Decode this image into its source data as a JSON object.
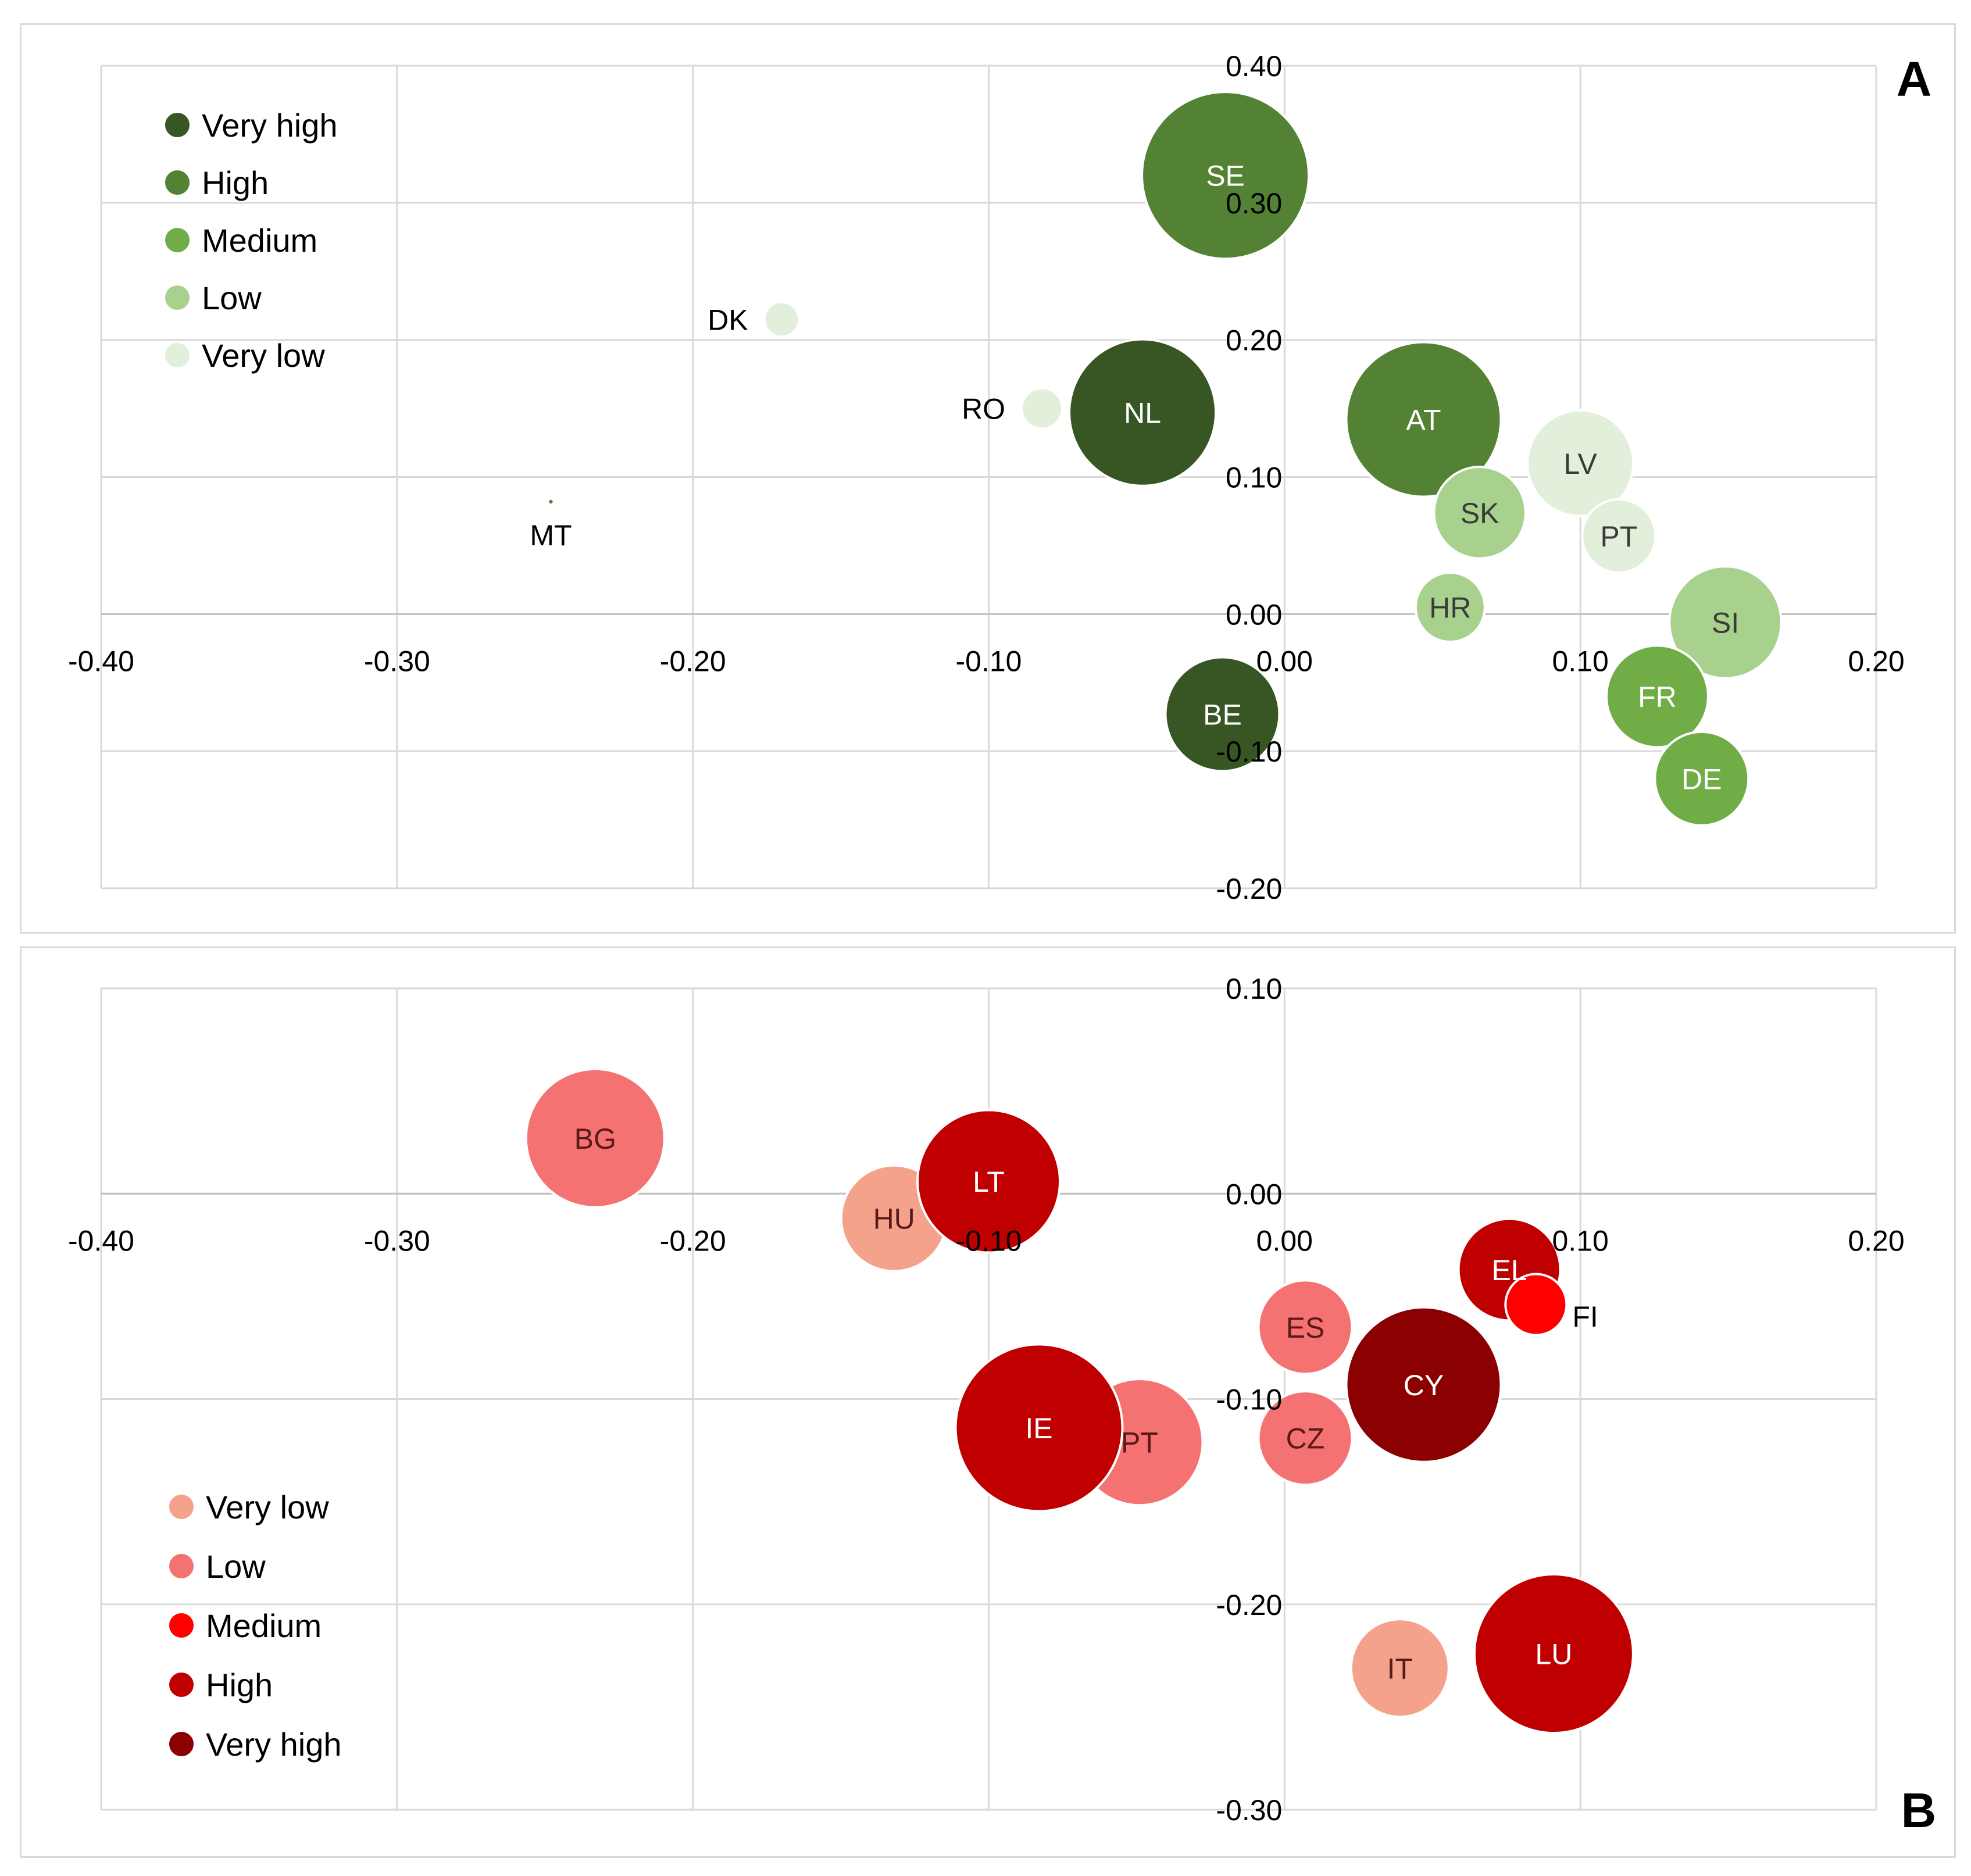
{
  "chart_data": [
    {
      "type": "bubble",
      "panel_label": "A",
      "xlim": [
        -0.4,
        0.2
      ],
      "ylim": [
        -0.2,
        0.4
      ],
      "x_ticks": [
        "-0.40",
        "-0.30",
        "-0.20",
        "-0.10",
        "0.00",
        "0.10",
        "0.20"
      ],
      "y_ticks": [
        "-0.20",
        "-0.10",
        "0.00",
        "0.10",
        "0.20",
        "0.30",
        "0.40"
      ],
      "legend_position": "top-left",
      "legend": [
        {
          "label": "Very high",
          "color": "#375623"
        },
        {
          "label": "High",
          "color": "#548235"
        },
        {
          "label": "Medium",
          "color": "#70ad47"
        },
        {
          "label": "Low",
          "color": "#a9d18e"
        },
        {
          "label": "Very low",
          "color": "#e2efda"
        }
      ],
      "points": [
        {
          "label": "SE",
          "x": -0.02,
          "y": 0.32,
          "size": 0.82,
          "category": "High",
          "color": "#548235",
          "text_color": "#ffffff",
          "label_pos": "inside"
        },
        {
          "label": "DK",
          "x": -0.17,
          "y": 0.215,
          "size": 0.17,
          "category": "Very low",
          "color": "#e2efda",
          "text_color": "#000000",
          "label_pos": "left"
        },
        {
          "label": "RO",
          "x": -0.082,
          "y": 0.15,
          "size": 0.2,
          "category": "Very low",
          "color": "#e2efda",
          "text_color": "#000000",
          "label_pos": "left"
        },
        {
          "label": "NL",
          "x": -0.048,
          "y": 0.147,
          "size": 0.72,
          "category": "Very high",
          "color": "#375623",
          "text_color": "#ffffff",
          "label_pos": "inside"
        },
        {
          "label": "AT",
          "x": 0.047,
          "y": 0.142,
          "size": 0.76,
          "category": "High",
          "color": "#548235",
          "text_color": "#ffffff",
          "label_pos": "inside"
        },
        {
          "label": "LV",
          "x": 0.1,
          "y": 0.11,
          "size": 0.52,
          "category": "Very low",
          "color": "#e2efda",
          "text_color": "#3a3a3a",
          "label_pos": "inside"
        },
        {
          "label": "SK",
          "x": 0.066,
          "y": 0.074,
          "size": 0.45,
          "category": "Low",
          "color": "#a9d18e",
          "text_color": "#3a3a3a",
          "label_pos": "inside"
        },
        {
          "label": "PT",
          "x": 0.113,
          "y": 0.057,
          "size": 0.36,
          "category": "Very low",
          "color": "#e2efda",
          "text_color": "#3a3a3a",
          "label_pos": "inside"
        },
        {
          "label": "MT",
          "x": -0.248,
          "y": 0.082,
          "size": 0.03,
          "category": "High",
          "color": "#548235",
          "text_color": "#000000",
          "label_pos": "below"
        },
        {
          "label": "HR",
          "x": 0.056,
          "y": 0.005,
          "size": 0.34,
          "category": "Low",
          "color": "#a9d18e",
          "text_color": "#3a3a3a",
          "label_pos": "inside"
        },
        {
          "label": "SI",
          "x": 0.149,
          "y": -0.006,
          "size": 0.55,
          "category": "Low",
          "color": "#a9d18e",
          "text_color": "#3a3a3a",
          "label_pos": "inside"
        },
        {
          "label": "FR",
          "x": 0.126,
          "y": -0.06,
          "size": 0.5,
          "category": "Medium",
          "color": "#70ad47",
          "text_color": "#ffffff",
          "label_pos": "inside"
        },
        {
          "label": "BE",
          "x": -0.021,
          "y": -0.073,
          "size": 0.56,
          "category": "Very high",
          "color": "#375623",
          "text_color": "#ffffff",
          "label_pos": "inside"
        },
        {
          "label": "DE",
          "x": 0.141,
          "y": -0.12,
          "size": 0.46,
          "category": "Medium",
          "color": "#70ad47",
          "text_color": "#ffffff",
          "label_pos": "inside"
        }
      ]
    },
    {
      "type": "bubble",
      "panel_label": "B",
      "xlim": [
        -0.4,
        0.2
      ],
      "ylim": [
        -0.3,
        0.1
      ],
      "x_ticks": [
        "-0.40",
        "-0.30",
        "-0.20",
        "-0.10",
        "0.00",
        "0.10",
        "0.20"
      ],
      "y_ticks": [
        "-0.30",
        "-0.20",
        "-0.10",
        "0.00",
        "0.10"
      ],
      "legend_position": "bottom-left",
      "legend": [
        {
          "label": "Very low",
          "color": "#f4a28c"
        },
        {
          "label": "Low",
          "color": "#f47272"
        },
        {
          "label": "Medium",
          "color": "#ff0000"
        },
        {
          "label": "High",
          "color": "#c00000"
        },
        {
          "label": "Very high",
          "color": "#8b0000"
        }
      ],
      "points": [
        {
          "label": "BG",
          "x": -0.233,
          "y": 0.027,
          "size": 0.68,
          "category": "Low",
          "color": "#f47272",
          "text_color": "#5a1a1a",
          "label_pos": "inside"
        },
        {
          "label": "HU",
          "x": -0.132,
          "y": -0.012,
          "size": 0.52,
          "category": "Very low",
          "color": "#f4a28c",
          "text_color": "#5a1a1a",
          "label_pos": "inside"
        },
        {
          "label": "LT",
          "x": -0.1,
          "y": 0.006,
          "size": 0.7,
          "category": "High",
          "color": "#c00000",
          "text_color": "#ffffff",
          "label_pos": "inside"
        },
        {
          "label": "EL",
          "x": 0.076,
          "y": -0.037,
          "size": 0.5,
          "category": "High",
          "color": "#c00000",
          "text_color": "#ffffff",
          "label_pos": "inside"
        },
        {
          "label": "FI",
          "x": 0.085,
          "y": -0.054,
          "size": 0.3,
          "category": "Medium",
          "color": "#ff0000",
          "text_color": "#000000",
          "label_pos": "right"
        },
        {
          "label": "ES",
          "x": 0.007,
          "y": -0.065,
          "size": 0.46,
          "category": "Low",
          "color": "#f47272",
          "text_color": "#5a1a1a",
          "label_pos": "inside"
        },
        {
          "label": "CY",
          "x": 0.047,
          "y": -0.093,
          "size": 0.76,
          "category": "Very high",
          "color": "#8b0000",
          "text_color": "#ffffff",
          "label_pos": "inside"
        },
        {
          "label": "PT",
          "x": -0.049,
          "y": -0.121,
          "size": 0.62,
          "category": "Low",
          "color": "#f47272",
          "text_color": "#5a1a1a",
          "label_pos": "inside"
        },
        {
          "label": "IE",
          "x": -0.083,
          "y": -0.114,
          "size": 0.82,
          "category": "High",
          "color": "#c00000",
          "text_color": "#ffffff",
          "label_pos": "inside"
        },
        {
          "label": "CZ",
          "x": 0.007,
          "y": -0.119,
          "size": 0.46,
          "category": "Low",
          "color": "#f47272",
          "text_color": "#5a1a1a",
          "label_pos": "inside"
        },
        {
          "label": "IT",
          "x": 0.039,
          "y": -0.231,
          "size": 0.48,
          "category": "Very low",
          "color": "#f4a28c",
          "text_color": "#5a1a1a",
          "label_pos": "inside"
        },
        {
          "label": "LU",
          "x": 0.091,
          "y": -0.224,
          "size": 0.78,
          "category": "High",
          "color": "#c00000",
          "text_color": "#ffffff",
          "label_pos": "inside"
        }
      ]
    }
  ]
}
